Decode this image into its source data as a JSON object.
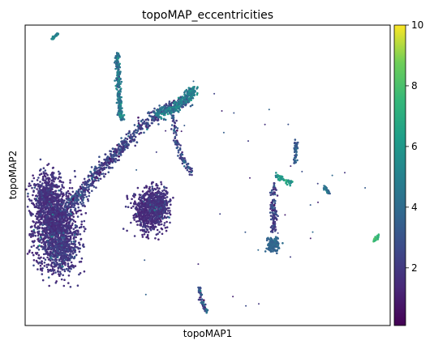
{
  "chart_data": {
    "type": "scatter",
    "title": "topoMAP_eccentricities",
    "xlabel": "topoMAP1",
    "ylabel": "topoMAP2",
    "colorbar": {
      "colormap": "viridis",
      "range": [
        0.1,
        10
      ],
      "ticks": [
        2,
        4,
        6,
        8,
        10
      ],
      "tick_labels": [
        "2",
        "4",
        "6",
        "8",
        "10"
      ]
    },
    "axis_ticks_shown": false,
    "grid": false,
    "colors": {
      "low": "#440154",
      "mid": "#21918c",
      "high": "#fde725"
    },
    "clusters": [
      {
        "name": "large-left-blob",
        "x": [
          -7.8,
          -6.6
        ],
        "y": [
          -2.6,
          0.4
        ],
        "typical": 1.8,
        "max": 4
      },
      {
        "name": "middle-blob",
        "x": [
          -3.6,
          -2.5
        ],
        "y": [
          -1.5,
          0.2
        ],
        "typical": 1.6,
        "max": 3
      },
      {
        "name": "upper-left-streak",
        "x": [
          -7.3,
          -7.1
        ],
        "y": [
          5.3,
          5.5
        ],
        "typical": 5.0,
        "max": 6
      },
      {
        "name": "vertical-strand",
        "x": [
          -4.8,
          -4.4
        ],
        "y": [
          2.3,
          4.8
        ],
        "typical": 4.3,
        "max": 5
      },
      {
        "name": "upper-right-arc",
        "x": [
          -3.4,
          -1.3
        ],
        "y": [
          1.8,
          3.0
        ],
        "typical": 4.8,
        "max": 7
      },
      {
        "name": "right-small-cluster",
        "x": [
          1.9,
          2.3
        ],
        "y": [
          -2.2,
          -1.0
        ],
        "typical": 3.8,
        "max": 5
      },
      {
        "name": "right-vertical-short",
        "x": [
          2.9,
          3.1
        ],
        "y": [
          1.0,
          1.8
        ],
        "typical": 3.2,
        "max": 4
      },
      {
        "name": "bottom-spur",
        "x": [
          -1.2,
          -0.8
        ],
        "y": [
          -4.2,
          -3.6
        ],
        "typical": 3.0,
        "max": 7
      }
    ]
  }
}
